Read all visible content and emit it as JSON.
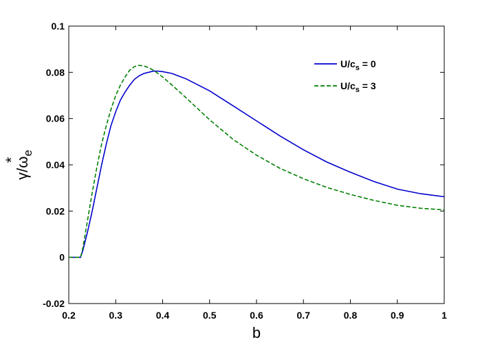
{
  "chart_data": {
    "type": "line",
    "xlabel": "b",
    "ylabel_main": "γ/ω",
    "ylabel_sup": "*",
    "ylabel_sub": "e",
    "xlim": [
      0.2,
      1.0
    ],
    "ylim": [
      -0.02,
      0.1
    ],
    "x_ticks": [
      0.2,
      0.3,
      0.4,
      0.5,
      0.6,
      0.7,
      0.8,
      0.9,
      1.0
    ],
    "x_tick_labels": [
      "0.2",
      "0.3",
      "0.4",
      "0.5",
      "0.6",
      "0.7",
      "0.8",
      "0.9",
      "1"
    ],
    "y_ticks": [
      -0.02,
      0,
      0.02,
      0.04,
      0.06,
      0.08,
      0.1
    ],
    "y_tick_labels": [
      "-0.02",
      "0",
      "0.02",
      "0.04",
      "0.06",
      "0.08",
      "0.1"
    ],
    "grid": false,
    "legend_position": "top-right",
    "series": [
      {
        "legend_main": "U/c",
        "legend_sub": "s",
        "legend_suffix": " = 0",
        "color": "#0000cc",
        "dash": "solid",
        "x": [
          0.2,
          0.225,
          0.23,
          0.24,
          0.25,
          0.26,
          0.27,
          0.28,
          0.29,
          0.3,
          0.31,
          0.32,
          0.33,
          0.34,
          0.35,
          0.36,
          0.37,
          0.38,
          0.39,
          0.4,
          0.42,
          0.45,
          0.5,
          0.55,
          0.6,
          0.65,
          0.7,
          0.75,
          0.8,
          0.85,
          0.9,
          0.95,
          1.0
        ],
        "y": [
          0.0,
          0.0,
          0.003,
          0.011,
          0.02,
          0.03,
          0.04,
          0.049,
          0.057,
          0.063,
          0.068,
          0.0715,
          0.0745,
          0.077,
          0.0785,
          0.0795,
          0.08,
          0.0805,
          0.0805,
          0.0803,
          0.0795,
          0.0772,
          0.072,
          0.0655,
          0.059,
          0.0525,
          0.0465,
          0.0412,
          0.0368,
          0.0328,
          0.0295,
          0.0275,
          0.0262
        ]
      },
      {
        "legend_main": "U/c",
        "legend_sub": "s",
        "legend_suffix": " = 3",
        "color": "#007f00",
        "dash": "dashed",
        "x": [
          0.2,
          0.225,
          0.23,
          0.24,
          0.25,
          0.26,
          0.27,
          0.28,
          0.29,
          0.3,
          0.31,
          0.32,
          0.33,
          0.34,
          0.35,
          0.36,
          0.37,
          0.38,
          0.39,
          0.4,
          0.42,
          0.45,
          0.5,
          0.55,
          0.6,
          0.65,
          0.7,
          0.75,
          0.8,
          0.85,
          0.9,
          0.95,
          1.0
        ],
        "y": [
          0.0,
          0.0,
          0.004,
          0.016,
          0.028,
          0.039,
          0.049,
          0.057,
          0.064,
          0.07,
          0.0745,
          0.078,
          0.081,
          0.0825,
          0.083,
          0.0828,
          0.082,
          0.081,
          0.0795,
          0.078,
          0.0745,
          0.069,
          0.0595,
          0.051,
          0.0442,
          0.0385,
          0.034,
          0.0302,
          0.0272,
          0.0246,
          0.0225,
          0.0212,
          0.0205
        ]
      }
    ]
  }
}
